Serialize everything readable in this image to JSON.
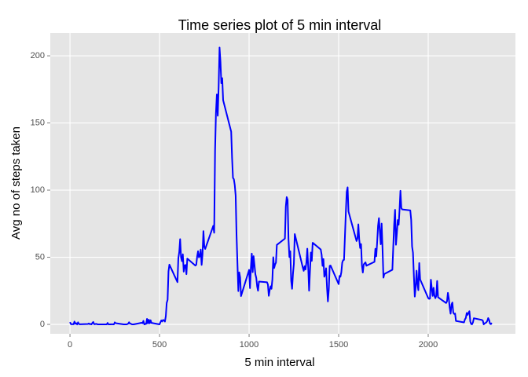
{
  "chart_data": {
    "type": "line",
    "title": "Time series plot of 5 min interval",
    "x_label": "5 min interval",
    "y_label": "Avg no of steps taken",
    "color": "#0000ff",
    "x": [
      0,
      5,
      10,
      15,
      20,
      25,
      30,
      35,
      40,
      45,
      50,
      55,
      100,
      105,
      110,
      115,
      120,
      125,
      130,
      135,
      140,
      145,
      150,
      155,
      200,
      205,
      210,
      215,
      220,
      225,
      230,
      235,
      240,
      245,
      250,
      255,
      300,
      305,
      310,
      315,
      320,
      325,
      330,
      335,
      340,
      345,
      350,
      355,
      400,
      405,
      410,
      415,
      420,
      425,
      430,
      435,
      440,
      445,
      450,
      455,
      500,
      505,
      510,
      515,
      520,
      525,
      530,
      535,
      540,
      545,
      550,
      555,
      600,
      605,
      610,
      615,
      620,
      625,
      630,
      635,
      640,
      645,
      650,
      655,
      700,
      705,
      710,
      715,
      720,
      725,
      730,
      735,
      740,
      745,
      750,
      755,
      800,
      805,
      810,
      815,
      820,
      825,
      830,
      835,
      840,
      845,
      850,
      855,
      900,
      905,
      910,
      915,
      920,
      925,
      930,
      935,
      940,
      945,
      950,
      955,
      1000,
      1005,
      1010,
      1015,
      1020,
      1025,
      1030,
      1035,
      1040,
      1045,
      1050,
      1055,
      1100,
      1105,
      1110,
      1115,
      1120,
      1125,
      1130,
      1135,
      1140,
      1145,
      1150,
      1155,
      1200,
      1205,
      1210,
      1215,
      1220,
      1225,
      1230,
      1235,
      1240,
      1245,
      1250,
      1255,
      1300,
      1305,
      1310,
      1315,
      1320,
      1325,
      1330,
      1335,
      1340,
      1345,
      1350,
      1355,
      1400,
      1405,
      1410,
      1415,
      1420,
      1425,
      1430,
      1435,
      1440,
      1445,
      1450,
      1455,
      1500,
      1505,
      1510,
      1515,
      1520,
      1525,
      1530,
      1535,
      1540,
      1545,
      1550,
      1555,
      1600,
      1605,
      1610,
      1615,
      1620,
      1625,
      1630,
      1635,
      1640,
      1645,
      1650,
      1655,
      1700,
      1705,
      1710,
      1715,
      1720,
      1725,
      1730,
      1735,
      1740,
      1745,
      1750,
      1755,
      1800,
      1805,
      1810,
      1815,
      1820,
      1825,
      1830,
      1835,
      1840,
      1845,
      1850,
      1855,
      1900,
      1905,
      1910,
      1915,
      1920,
      1925,
      1930,
      1935,
      1940,
      1945,
      1950,
      1955,
      2000,
      2005,
      2010,
      2015,
      2020,
      2025,
      2030,
      2035,
      2040,
      2045,
      2050,
      2055,
      2100,
      2105,
      2110,
      2115,
      2120,
      2125,
      2130,
      2135,
      2140,
      2145,
      2150,
      2155,
      2200,
      2205,
      2210,
      2215,
      2220,
      2225,
      2230,
      2235,
      2240,
      2245,
      2250,
      2255,
      2300,
      2305,
      2310,
      2315,
      2320,
      2325,
      2330,
      2335,
      2340,
      2345,
      2350,
      2355
    ],
    "values": [
      1.7,
      0.3,
      0.1,
      0.2,
      0.1,
      2.1,
      0.5,
      0.9,
      0,
      1.5,
      0.3,
      0.1,
      0.3,
      0.7,
      0.2,
      0.3,
      0,
      1.1,
      1.8,
      0.2,
      0.2,
      0.4,
      0.3,
      0,
      0,
      0,
      1.1,
      0,
      0,
      0.1,
      0,
      0.2,
      0,
      0,
      1.5,
      0.9,
      0,
      0,
      0,
      0,
      0.2,
      0.6,
      1.6,
      0.6,
      0.5,
      0.1,
      0,
      0,
      1.2,
      0.9,
      2.6,
      0,
      0.3,
      0.4,
      4.1,
      0.7,
      3.5,
      0.8,
      3.1,
      1.1,
      0,
      1.6,
      3,
      2.2,
      3.3,
      3,
      2.1,
      6.1,
      16,
      18.3,
      39.5,
      44.5,
      31.5,
      49.3,
      53.8,
      63.5,
      50,
      47.1,
      52.2,
      39.3,
      44,
      44.2,
      37.4,
      49,
      43.8,
      44.4,
      50.5,
      54.5,
      49.9,
      50.9,
      55.7,
      44.3,
      52.3,
      69.5,
      57.8,
      56.2,
      73.4,
      68.2,
      129.4,
      157.5,
      171.2,
      155.4,
      177.3,
      206.2,
      195.9,
      179.6,
      183.4,
      167,
      143.5,
      124,
      109.1,
      108.1,
      103.7,
      95.9,
      66.2,
      45.2,
      24.8,
      38.8,
      35,
      21.1,
      40.6,
      27,
      42.4,
      52.7,
      38.9,
      50.8,
      44.3,
      37.4,
      34.7,
      28.3,
      25.1,
      31.9,
      31.4,
      29.7,
      21.3,
      25.5,
      28.4,
      26.5,
      33.4,
      50,
      42,
      44.6,
      46,
      59.2,
      63.9,
      87.7,
      94.8,
      92.8,
      63.4,
      50.2,
      54.5,
      32.4,
      26.5,
      37.7,
      45.1,
      67.3,
      42.3,
      39.9,
      43.3,
      40.9,
      46.2,
      56.4,
      42.8,
      25.1,
      39.9,
      53.5,
      47.3,
      60.8,
      55.8,
      51.9,
      43.6,
      48.7,
      35.5,
      37.5,
      41.8,
      27.5,
      17.1,
      26.1,
      43.6,
      43.8,
      30,
      36.1,
      35.5,
      38.8,
      46,
      47.8,
      48.1,
      65.3,
      82.9,
      98.7,
      102.1,
      84,
      62.1,
      64.1,
      74.5,
      63.2,
      56.9,
      59.8,
      43.9,
      38.6,
      44.7,
      45.5,
      46.2,
      43.7,
      46.6,
      56.3,
      50.7,
      61.2,
      73.4,
      79.1,
      68.9,
      59.7,
      75.1,
      56.5,
      34.8,
      37.5,
      40.7,
      58,
      74.7,
      85.3,
      59.3,
      67.8,
      77.7,
      74.2,
      85.3,
      99.5,
      86.6,
      85.6,
      84.9,
      77.8,
      58,
      53.4,
      36.3,
      20.7,
      27.4,
      40,
      30.2,
      25.5,
      45.7,
      33.5,
      19.6,
      19,
      19.3,
      33.3,
      26.8,
      21.2,
      27.3,
      21.3,
      19.5,
      21.3,
      32.3,
      20.2,
      15.9,
      17.2,
      23.5,
      19.2,
      12.5,
      8,
      14.7,
      16.3,
      8.7,
      7.8,
      8.1,
      2.6,
      1.5,
      3.7,
      4.8,
      8.5,
      7.1,
      8.7,
      9.8,
      2.2,
      0.3,
      0.1,
      1.6,
      4.6,
      3.3,
      2.8,
      0,
      0.8,
      1,
      1.6,
      2.6,
      4.7,
      3.3,
      0.6,
      0.2,
      1.1
    ],
    "xlim": [
      -110,
      2487
    ],
    "ylim": [
      -7,
      217
    ],
    "xticks": [
      0,
      500,
      1000,
      1500,
      2000
    ],
    "yticks": [
      0,
      50,
      100,
      150,
      200
    ],
    "grid": true
  }
}
